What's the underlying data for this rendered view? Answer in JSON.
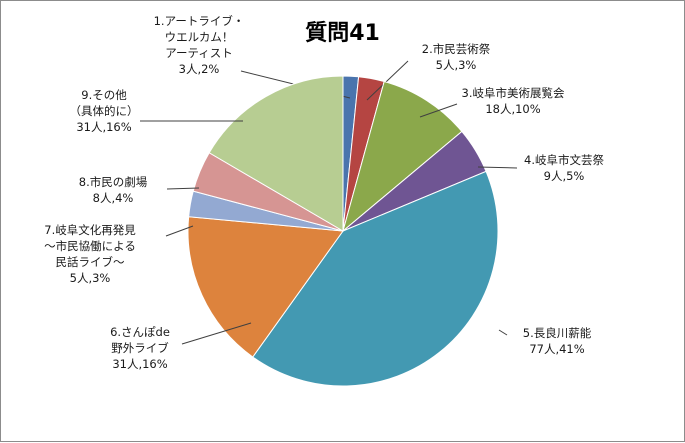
{
  "chart_data": {
    "type": "pie",
    "title": "質問41",
    "start_angle_deg": 0,
    "direction": "clockwise",
    "slices": [
      {
        "label_lines": [
          "1.アートライブ・",
          "ウエルカム！",
          "アーティスト",
          "3人,2%"
        ],
        "count": 3,
        "percent": 2,
        "color": "#4a74ad"
      },
      {
        "label_lines": [
          "2.市民芸術祭",
          "5人,3%"
        ],
        "count": 5,
        "percent": 3,
        "color": "#b54542"
      },
      {
        "label_lines": [
          "3.岐阜市美術展覧会",
          "18人,10%"
        ],
        "count": 18,
        "percent": 10,
        "color": "#8ba84b"
      },
      {
        "label_lines": [
          "4.岐阜市文芸祭",
          "9人,5%"
        ],
        "count": 9,
        "percent": 5,
        "color": "#6f5593"
      },
      {
        "label_lines": [
          "5.長良川薪能",
          "77人,41%"
        ],
        "count": 77,
        "percent": 41,
        "color": "#4399b2"
      },
      {
        "label_lines": [
          "6.さんぽde",
          "野外ライブ",
          "31人,16%"
        ],
        "count": 31,
        "percent": 16,
        "color": "#dd833d"
      },
      {
        "label_lines": [
          "7.岐阜文化再発見",
          "～市民協働による",
          "民話ライブ～",
          "5人,3%"
        ],
        "count": 5,
        "percent": 3,
        "color": "#93a9d2"
      },
      {
        "label_lines": [
          "8.市民の劇場",
          "8人,4%"
        ],
        "count": 8,
        "percent": 4,
        "color": "#d69593"
      },
      {
        "label_lines": [
          "9.その他",
          "（具体的に）",
          "31人,16%"
        ],
        "count": 31,
        "percent": 16,
        "color": "#b7cd92"
      }
    ],
    "total": 187,
    "legend": "none"
  }
}
